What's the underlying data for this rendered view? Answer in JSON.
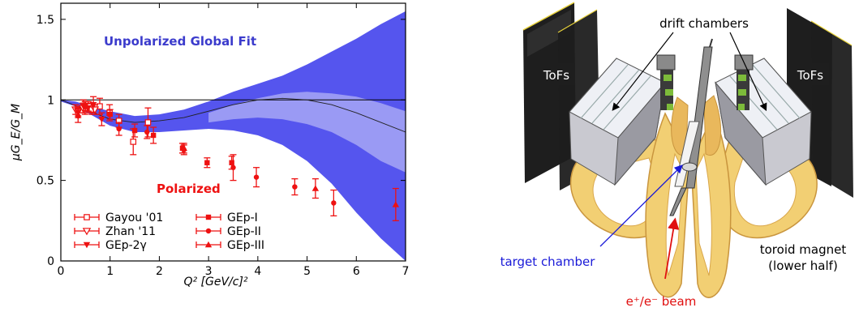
{
  "chart_data": {
    "type": "scatter",
    "xlabel": "Q² [GeV/c]²",
    "ylabel": "μG_E/G_M",
    "xlim": [
      0,
      7
    ],
    "ylim": [
      0,
      1.6
    ],
    "x_ticks": [
      "0",
      "1",
      "2",
      "3",
      "4",
      "5",
      "6",
      "7"
    ],
    "y_ticks": [
      "0",
      "0.5",
      "1",
      "1.5"
    ],
    "annotations": {
      "global_fit": "Unpolarized Global Fit",
      "polarized": "Polarized"
    },
    "legend_placement": "bottom-left",
    "colors": {
      "fit_band": "#5555ee",
      "fit_inner": "#9a9af4",
      "data": "#ee1111"
    },
    "band": {
      "name": "Unpolarized Global Fit",
      "x": [
        0.0,
        0.3,
        0.6,
        1.0,
        1.5,
        2.0,
        2.5,
        3.0,
        3.5,
        4.0,
        4.5,
        5.0,
        5.5,
        6.0,
        6.5,
        7.0
      ],
      "upper": [
        1.0,
        0.99,
        0.96,
        0.93,
        0.9,
        0.91,
        0.94,
        0.99,
        1.05,
        1.1,
        1.15,
        1.22,
        1.3,
        1.38,
        1.47,
        1.55
      ],
      "lower": [
        0.99,
        0.96,
        0.91,
        0.84,
        0.8,
        0.8,
        0.81,
        0.82,
        0.81,
        0.78,
        0.72,
        0.62,
        0.48,
        0.3,
        0.14,
        0.0
      ]
    },
    "inner_band": {
      "x": [
        3.0,
        3.5,
        4.0,
        4.5,
        5.0,
        5.5,
        6.0,
        6.5,
        7.0
      ],
      "upper": [
        0.92,
        0.97,
        1.01,
        1.04,
        1.05,
        1.04,
        1.02,
        0.98,
        0.93
      ],
      "lower": [
        0.86,
        0.88,
        0.89,
        0.88,
        0.85,
        0.8,
        0.72,
        0.62,
        0.55
      ]
    },
    "fit_curve": {
      "x": [
        0.0,
        0.5,
        1.0,
        1.5,
        2.0,
        2.5,
        3.0,
        3.5,
        4.0,
        4.5,
        5.0,
        5.5,
        6.0,
        6.5,
        7.0
      ],
      "y": [
        1.0,
        0.94,
        0.88,
        0.86,
        0.87,
        0.89,
        0.93,
        0.97,
        1.0,
        1.01,
        1.0,
        0.97,
        0.92,
        0.86,
        0.8
      ]
    },
    "reference_line": 1.0,
    "series": [
      {
        "name": "Gayou '01",
        "marker": "square-open",
        "points": [
          [
            0.49,
            0.95,
            0.04
          ],
          [
            0.63,
            0.94,
            0.03
          ],
          [
            0.79,
            0.96,
            0.05
          ],
          [
            0.99,
            0.92,
            0.05
          ],
          [
            1.18,
            0.87,
            0.04
          ],
          [
            1.47,
            0.74,
            0.08
          ],
          [
            1.77,
            0.86,
            0.09
          ]
        ]
      },
      {
        "name": "Zhan '11",
        "marker": "triangle-down-open",
        "points": [
          [
            0.3,
            0.94,
            0.03
          ],
          [
            0.35,
            0.93,
            0.03
          ],
          [
            0.45,
            0.95,
            0.03
          ],
          [
            0.56,
            0.96,
            0.03
          ],
          [
            0.69,
            0.94,
            0.03
          ]
        ]
      },
      {
        "name": "GEp-2γ",
        "marker": "triangle-down",
        "points": [
          [
            0.35,
            0.92,
            0.03
          ],
          [
            0.46,
            0.96,
            0.04
          ],
          [
            0.54,
            0.95,
            0.03
          ],
          [
            0.66,
            0.97,
            0.05
          ],
          [
            0.83,
            0.88,
            0.04
          ]
        ]
      },
      {
        "name": "GEp-I",
        "marker": "square",
        "points": [
          [
            0.5,
            0.96,
            0.03
          ],
          [
            1.0,
            0.91,
            0.03
          ],
          [
            1.5,
            0.81,
            0.04
          ],
          [
            1.88,
            0.78,
            0.05
          ],
          [
            2.47,
            0.7,
            0.03
          ],
          [
            2.97,
            0.61,
            0.03
          ],
          [
            3.47,
            0.61,
            0.04
          ]
        ]
      },
      {
        "name": "GEp-II",
        "marker": "circle",
        "points": [
          [
            0.35,
            0.9,
            0.04
          ],
          [
            1.18,
            0.82,
            0.04
          ],
          [
            1.75,
            0.8,
            0.04
          ],
          [
            2.5,
            0.69,
            0.03
          ],
          [
            3.5,
            0.58,
            0.08
          ],
          [
            3.97,
            0.52,
            0.06
          ],
          [
            4.75,
            0.46,
            0.05
          ],
          [
            5.54,
            0.36,
            0.08
          ]
        ]
      },
      {
        "name": "GEp-III",
        "marker": "triangle-up",
        "points": [
          [
            2.5,
            0.7,
            0.03
          ],
          [
            5.17,
            0.45,
            0.06
          ],
          [
            6.8,
            0.35,
            0.1
          ]
        ]
      }
    ]
  },
  "detector": {
    "labels": {
      "drift_chambers": "drift chambers",
      "tofs_left": "ToFs",
      "tofs_right": "ToFs",
      "target_chamber": "target chamber",
      "toroid_line1": "toroid magnet",
      "toroid_line2": "(lower half)",
      "beam": "e⁺/e⁻ beam"
    },
    "colors": {
      "magnet": "#f2cf73",
      "magnet_dark": "#d9a64a",
      "chamber": "#b5b5bd",
      "tof": "#1e1e1e",
      "target_label": "#1a1ad8",
      "beam_label": "#e01010"
    }
  }
}
